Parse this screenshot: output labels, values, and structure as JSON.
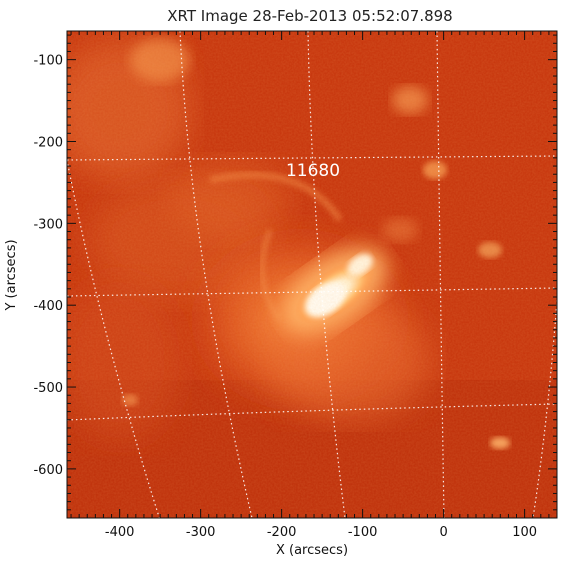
{
  "title": "XRT Image 28-Feb-2013 05:52:07.898",
  "active_region_label": "11680",
  "x_axis": {
    "label": "X (arcsecs)",
    "range": [
      -465,
      140
    ],
    "ticks": [
      -400,
      -300,
      -200,
      -100,
      0,
      100
    ],
    "tick_labels": [
      "-400",
      "-300",
      "-200",
      "-100",
      "0",
      "100"
    ]
  },
  "y_axis": {
    "label": "Y (arcsecs)",
    "range": [
      -660,
      -65
    ],
    "ticks": [
      -100,
      -200,
      -300,
      -400,
      -500,
      -600
    ],
    "tick_labels": [
      "-100",
      "-200",
      "-300",
      "-400",
      "-500",
      "-600"
    ]
  },
  "colors": {
    "background": "#cc3a12",
    "bright_core": "#fff8e8",
    "grid": "#ffffff"
  }
}
